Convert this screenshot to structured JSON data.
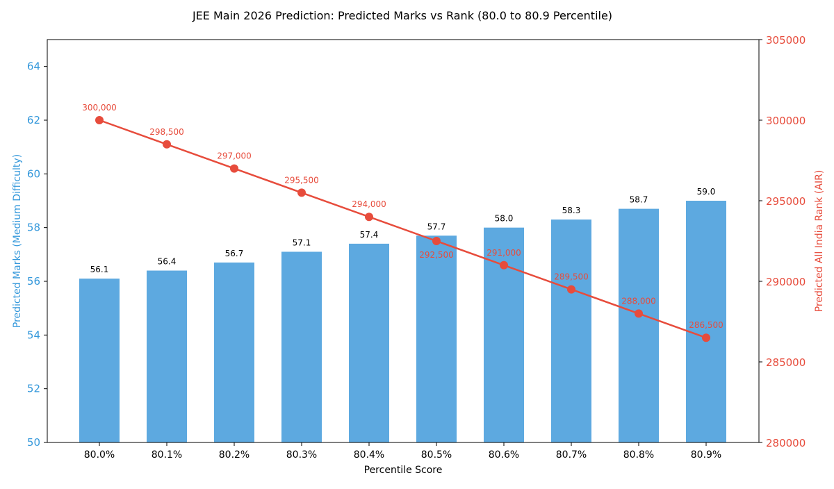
{
  "chart_data": {
    "type": "bar+line",
    "title": "JEE Main 2026 Prediction: Predicted Marks vs Rank (80.0 to 80.9 Percentile)",
    "xlabel": "Percentile Score",
    "ylabel_left": "Predicted Marks (Medium Difficulty)",
    "ylabel_right": "Predicted All India Rank (AIR)",
    "categories": [
      "80.0%",
      "80.1%",
      "80.2%",
      "80.3%",
      "80.4%",
      "80.5%",
      "80.6%",
      "80.7%",
      "80.8%",
      "80.9%"
    ],
    "series": [
      {
        "kind": "bar",
        "axis": "left",
        "values": [
          56.1,
          56.4,
          56.7,
          57.1,
          57.4,
          57.7,
          58.0,
          58.3,
          58.7,
          59.0
        ],
        "labels": [
          "56.1",
          "56.4",
          "56.7",
          "57.1",
          "57.4",
          "57.7",
          "58.0",
          "58.3",
          "58.7",
          "59.0"
        ],
        "color": "#5DA9E0"
      },
      {
        "kind": "line",
        "axis": "right",
        "values": [
          300000,
          298500,
          297000,
          295500,
          294000,
          292500,
          291000,
          289500,
          288000,
          286500
        ],
        "labels": [
          "300,000",
          "298,500",
          "297,000",
          "295,500",
          "294,000",
          "292,500",
          "291,000",
          "289,500",
          "288,000",
          "286,500"
        ],
        "color": "#E74C3C"
      }
    ],
    "ylim_left": [
      50,
      65
    ],
    "yticks_left": [
      "50",
      "52",
      "54",
      "56",
      "58",
      "60",
      "62",
      "64"
    ],
    "ylim_right": [
      280000,
      305000
    ],
    "yticks_right": [
      "280000",
      "285000",
      "290000",
      "295000",
      "300000",
      "305000"
    ],
    "grid": false,
    "colors": {
      "left_axis": "#3498DB",
      "right_axis": "#E74C3C"
    }
  }
}
